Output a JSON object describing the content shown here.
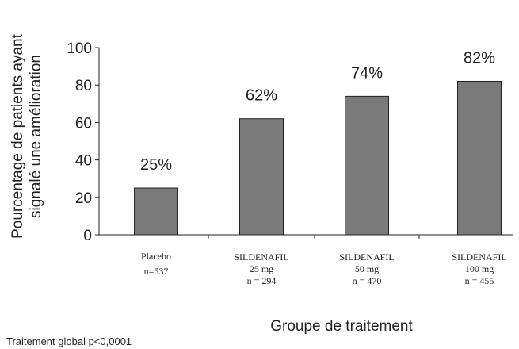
{
  "chart_data": {
    "type": "bar",
    "title": "",
    "ylabel": [
      "Pourcentage de patients ayant",
      "signalé une amélioration"
    ],
    "xlabel": "Groupe de traitement",
    "ylim": [
      0,
      100
    ],
    "yticks": [
      0,
      20,
      40,
      60,
      80,
      100
    ],
    "categories": [
      [
        "Placebo",
        "n=537"
      ],
      [
        "SILDENAFIL",
        "25 mg",
        "n = 294"
      ],
      [
        "SILDENAFIL",
        "50 mg",
        "n = 470"
      ],
      [
        "SILDENAFIL",
        "100 mg",
        "n = 455"
      ]
    ],
    "values": [
      25,
      62,
      74,
      82
    ],
    "data_labels": [
      "25%",
      "62%",
      "74%",
      "82%"
    ],
    "bar_color": "#7a7a7a",
    "grid": false,
    "legend": "none"
  },
  "footnote": "Traitement global p<0,0001"
}
